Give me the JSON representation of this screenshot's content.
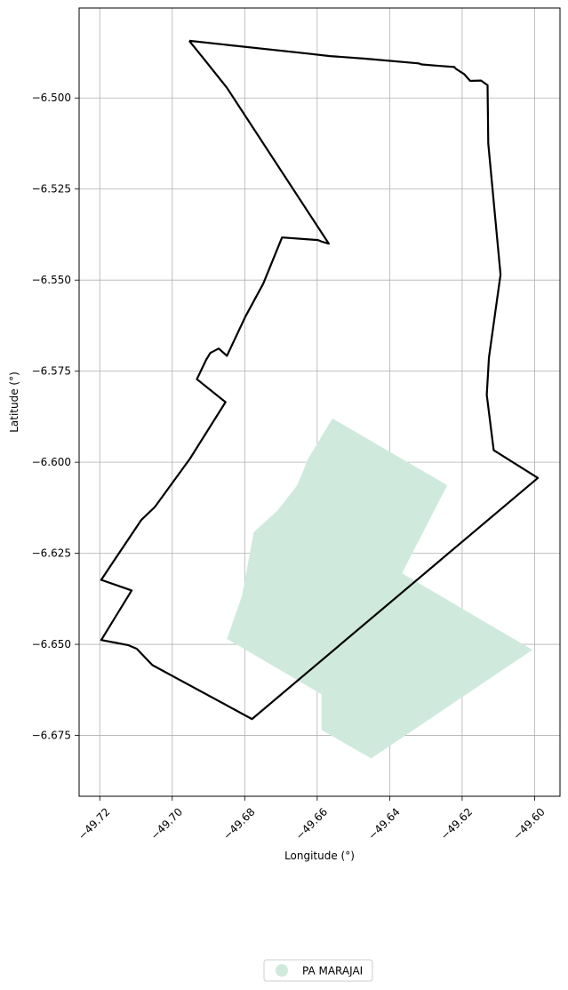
{
  "chart_data": {
    "type": "map",
    "xlabel": "Longitude (°)",
    "ylabel": "Latitude (°)",
    "xlim": [
      -49.7257,
      -49.593
    ],
    "ylim": [
      -6.6917,
      -6.4753
    ],
    "grid": true,
    "xticks": [
      {
        "value": -49.72,
        "label": "−49.72"
      },
      {
        "value": -49.7,
        "label": "−49.70"
      },
      {
        "value": -49.68,
        "label": "−49.68"
      },
      {
        "value": -49.66,
        "label": "−49.66"
      },
      {
        "value": -49.64,
        "label": "−49.64"
      },
      {
        "value": -49.62,
        "label": "−49.62"
      },
      {
        "value": -49.6,
        "label": "−49.60"
      }
    ],
    "yticks": [
      {
        "value": -6.5,
        "label": "−6.500"
      },
      {
        "value": -6.525,
        "label": "−6.525"
      },
      {
        "value": -6.55,
        "label": "−6.550"
      },
      {
        "value": -6.575,
        "label": "−6.575"
      },
      {
        "value": -6.6,
        "label": "−6.600"
      },
      {
        "value": -6.625,
        "label": "−6.625"
      },
      {
        "value": -6.65,
        "label": "−6.650"
      },
      {
        "value": -6.675,
        "label": "−6.675"
      }
    ],
    "boundary": {
      "color": "#000000",
      "coords": [
        [
          -49.6953,
          -6.4843
        ],
        [
          -49.6911,
          -6.4895
        ],
        [
          -49.6849,
          -6.4972
        ],
        [
          -49.6568,
          -6.54
        ],
        [
          -49.6586,
          -6.5395
        ],
        [
          -49.6598,
          -6.539
        ],
        [
          -49.6697,
          -6.5383
        ],
        [
          -49.6749,
          -6.551
        ],
        [
          -49.6798,
          -6.56
        ],
        [
          -49.6849,
          -6.5708
        ],
        [
          -49.6872,
          -6.5688
        ],
        [
          -49.6895,
          -6.57
        ],
        [
          -49.6906,
          -6.5718
        ],
        [
          -49.6932,
          -6.5772
        ],
        [
          -49.6853,
          -6.5835
        ],
        [
          -49.6951,
          -6.599
        ],
        [
          -49.7048,
          -6.6123
        ],
        [
          -49.7085,
          -6.6158
        ],
        [
          -49.7166,
          -6.6278
        ],
        [
          -49.7196,
          -6.6323
        ],
        [
          -49.7112,
          -6.6352
        ],
        [
          -49.7196,
          -6.6488
        ],
        [
          -49.7122,
          -6.6502
        ],
        [
          -49.7098,
          -6.6512
        ],
        [
          -49.7055,
          -6.6557
        ],
        [
          -49.678,
          -6.6705
        ],
        [
          -49.5991,
          -6.6043
        ],
        [
          -49.6113,
          -6.5967
        ],
        [
          -49.6132,
          -6.5815
        ],
        [
          -49.6126,
          -6.5712
        ],
        [
          -49.6094,
          -6.5485
        ],
        [
          -49.6128,
          -6.5125
        ],
        [
          -49.613,
          -6.4965
        ],
        [
          -49.6148,
          -6.4952
        ],
        [
          -49.6178,
          -6.4953
        ],
        [
          -49.6194,
          -6.4935
        ],
        [
          -49.6217,
          -6.492
        ],
        [
          -49.6222,
          -6.4915
        ],
        [
          -49.6261,
          -6.4912
        ],
        [
          -49.6312,
          -6.4908
        ],
        [
          -49.632,
          -6.4905
        ],
        [
          -49.6468,
          -6.4892
        ],
        [
          -49.6565,
          -6.4885
        ],
        [
          -49.6628,
          -6.4878
        ],
        [
          -49.6953,
          -6.4843
        ]
      ]
    },
    "regions": [
      {
        "name": "PA MARAJAI",
        "color": "#cfeadd",
        "coords": [
          [
            -49.6558,
            -6.588
          ],
          [
            -49.6241,
            -6.6063
          ],
          [
            -49.6366,
            -6.6305
          ],
          [
            -49.6006,
            -6.6515
          ],
          [
            -49.6451,
            -6.6813
          ],
          [
            -49.6588,
            -6.6735
          ],
          [
            -49.6588,
            -6.6637
          ],
          [
            -49.6849,
            -6.6485
          ],
          [
            -49.6808,
            -6.6368
          ],
          [
            -49.6775,
            -6.6192
          ],
          [
            -49.671,
            -6.6133
          ],
          [
            -49.6655,
            -6.6063
          ],
          [
            -49.6625,
            -6.599
          ],
          [
            -49.6558,
            -6.588
          ]
        ]
      }
    ],
    "legend": {
      "placement": "bottom-center",
      "entries": [
        "PA MARAJAI"
      ]
    }
  }
}
